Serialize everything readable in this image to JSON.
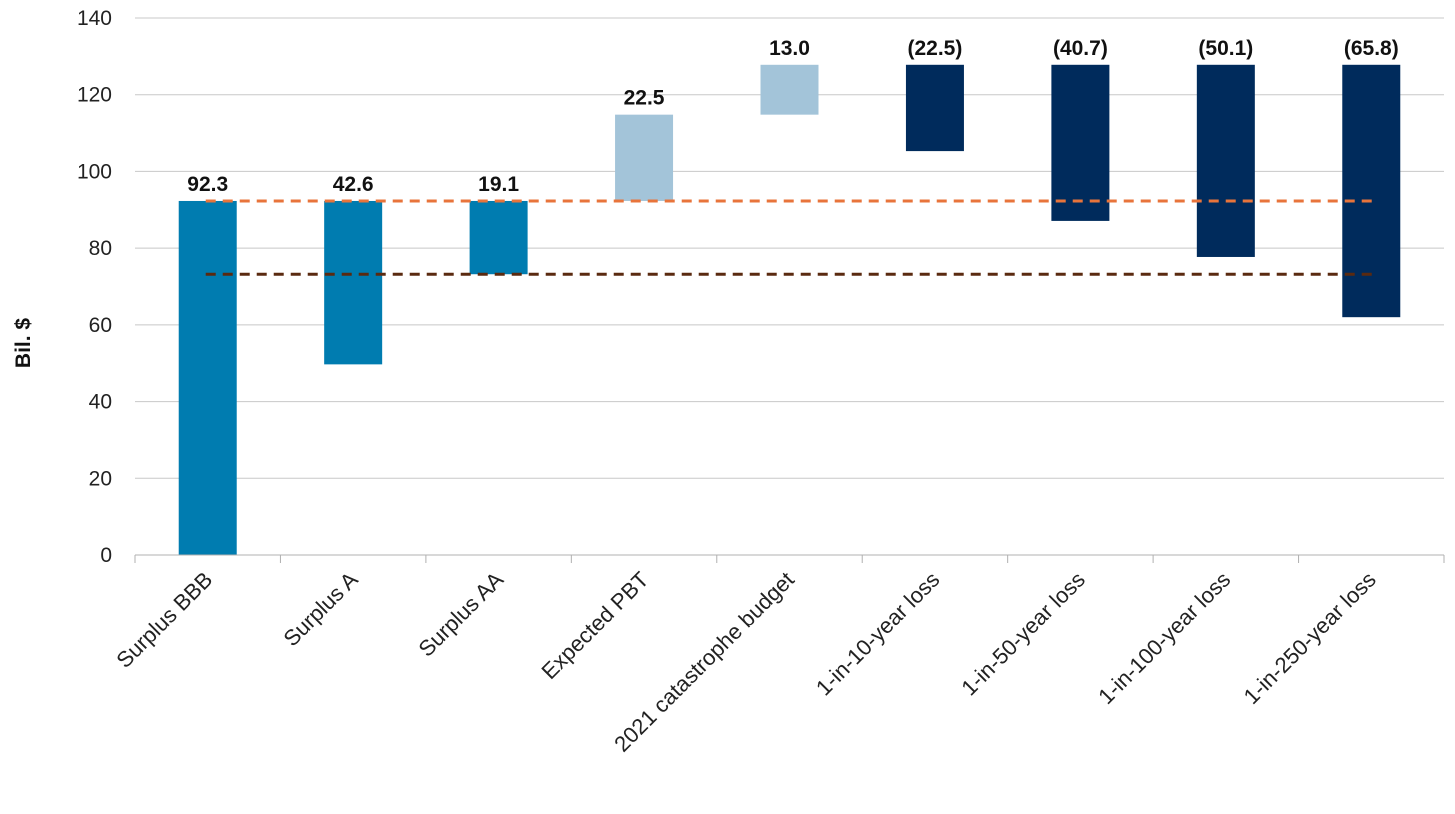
{
  "chart_data": {
    "type": "bar",
    "subtype": "waterfall",
    "ylabel": "Bil. $",
    "ylim": [
      0,
      140
    ],
    "yticks": [
      0,
      20,
      40,
      60,
      80,
      100,
      120,
      140
    ],
    "grid": true,
    "categories": [
      "Surplus BBB",
      "Surplus A",
      "Surplus AA",
      "Expected PBT",
      "2021 catastrophe budget",
      "1-in-10-year loss",
      "1-in-50-year loss",
      "1-in-100-year loss",
      "1-in-250-year loss"
    ],
    "bars": [
      {
        "category": "Surplus BBB",
        "label": "92.3",
        "base": 0,
        "top": 92.3,
        "color": "#007cb0"
      },
      {
        "category": "Surplus A",
        "label": "42.6",
        "base": 49.7,
        "top": 92.3,
        "color": "#007cb0"
      },
      {
        "category": "Surplus AA",
        "label": "19.1",
        "base": 73.2,
        "top": 92.3,
        "color": "#007cb0"
      },
      {
        "category": "Expected PBT",
        "label": "22.5",
        "base": 92.3,
        "top": 114.8,
        "color": "#a3c4d9"
      },
      {
        "category": "2021 catastrophe budget",
        "label": "13.0",
        "base": 114.8,
        "top": 127.8,
        "color": "#a3c4d9"
      },
      {
        "category": "1-in-10-year loss",
        "label": "(22.5)",
        "base": 105.3,
        "top": 127.8,
        "color": "#002b5c"
      },
      {
        "category": "1-in-50-year loss",
        "label": "(40.7)",
        "base": 87.1,
        "top": 127.8,
        "color": "#002b5c"
      },
      {
        "category": "1-in-100-year loss",
        "label": "(50.1)",
        "base": 77.7,
        "top": 127.8,
        "color": "#002b5c"
      },
      {
        "category": "1-in-250-year loss",
        "label": "(65.8)",
        "base": 62.0,
        "top": 127.8,
        "color": "#002b5c"
      }
    ],
    "reference_lines": [
      {
        "value": 92.3,
        "color": "#e8743b",
        "style": "dashed"
      },
      {
        "value": 73.2,
        "color": "#5a2a10",
        "style": "dashed"
      }
    ]
  }
}
